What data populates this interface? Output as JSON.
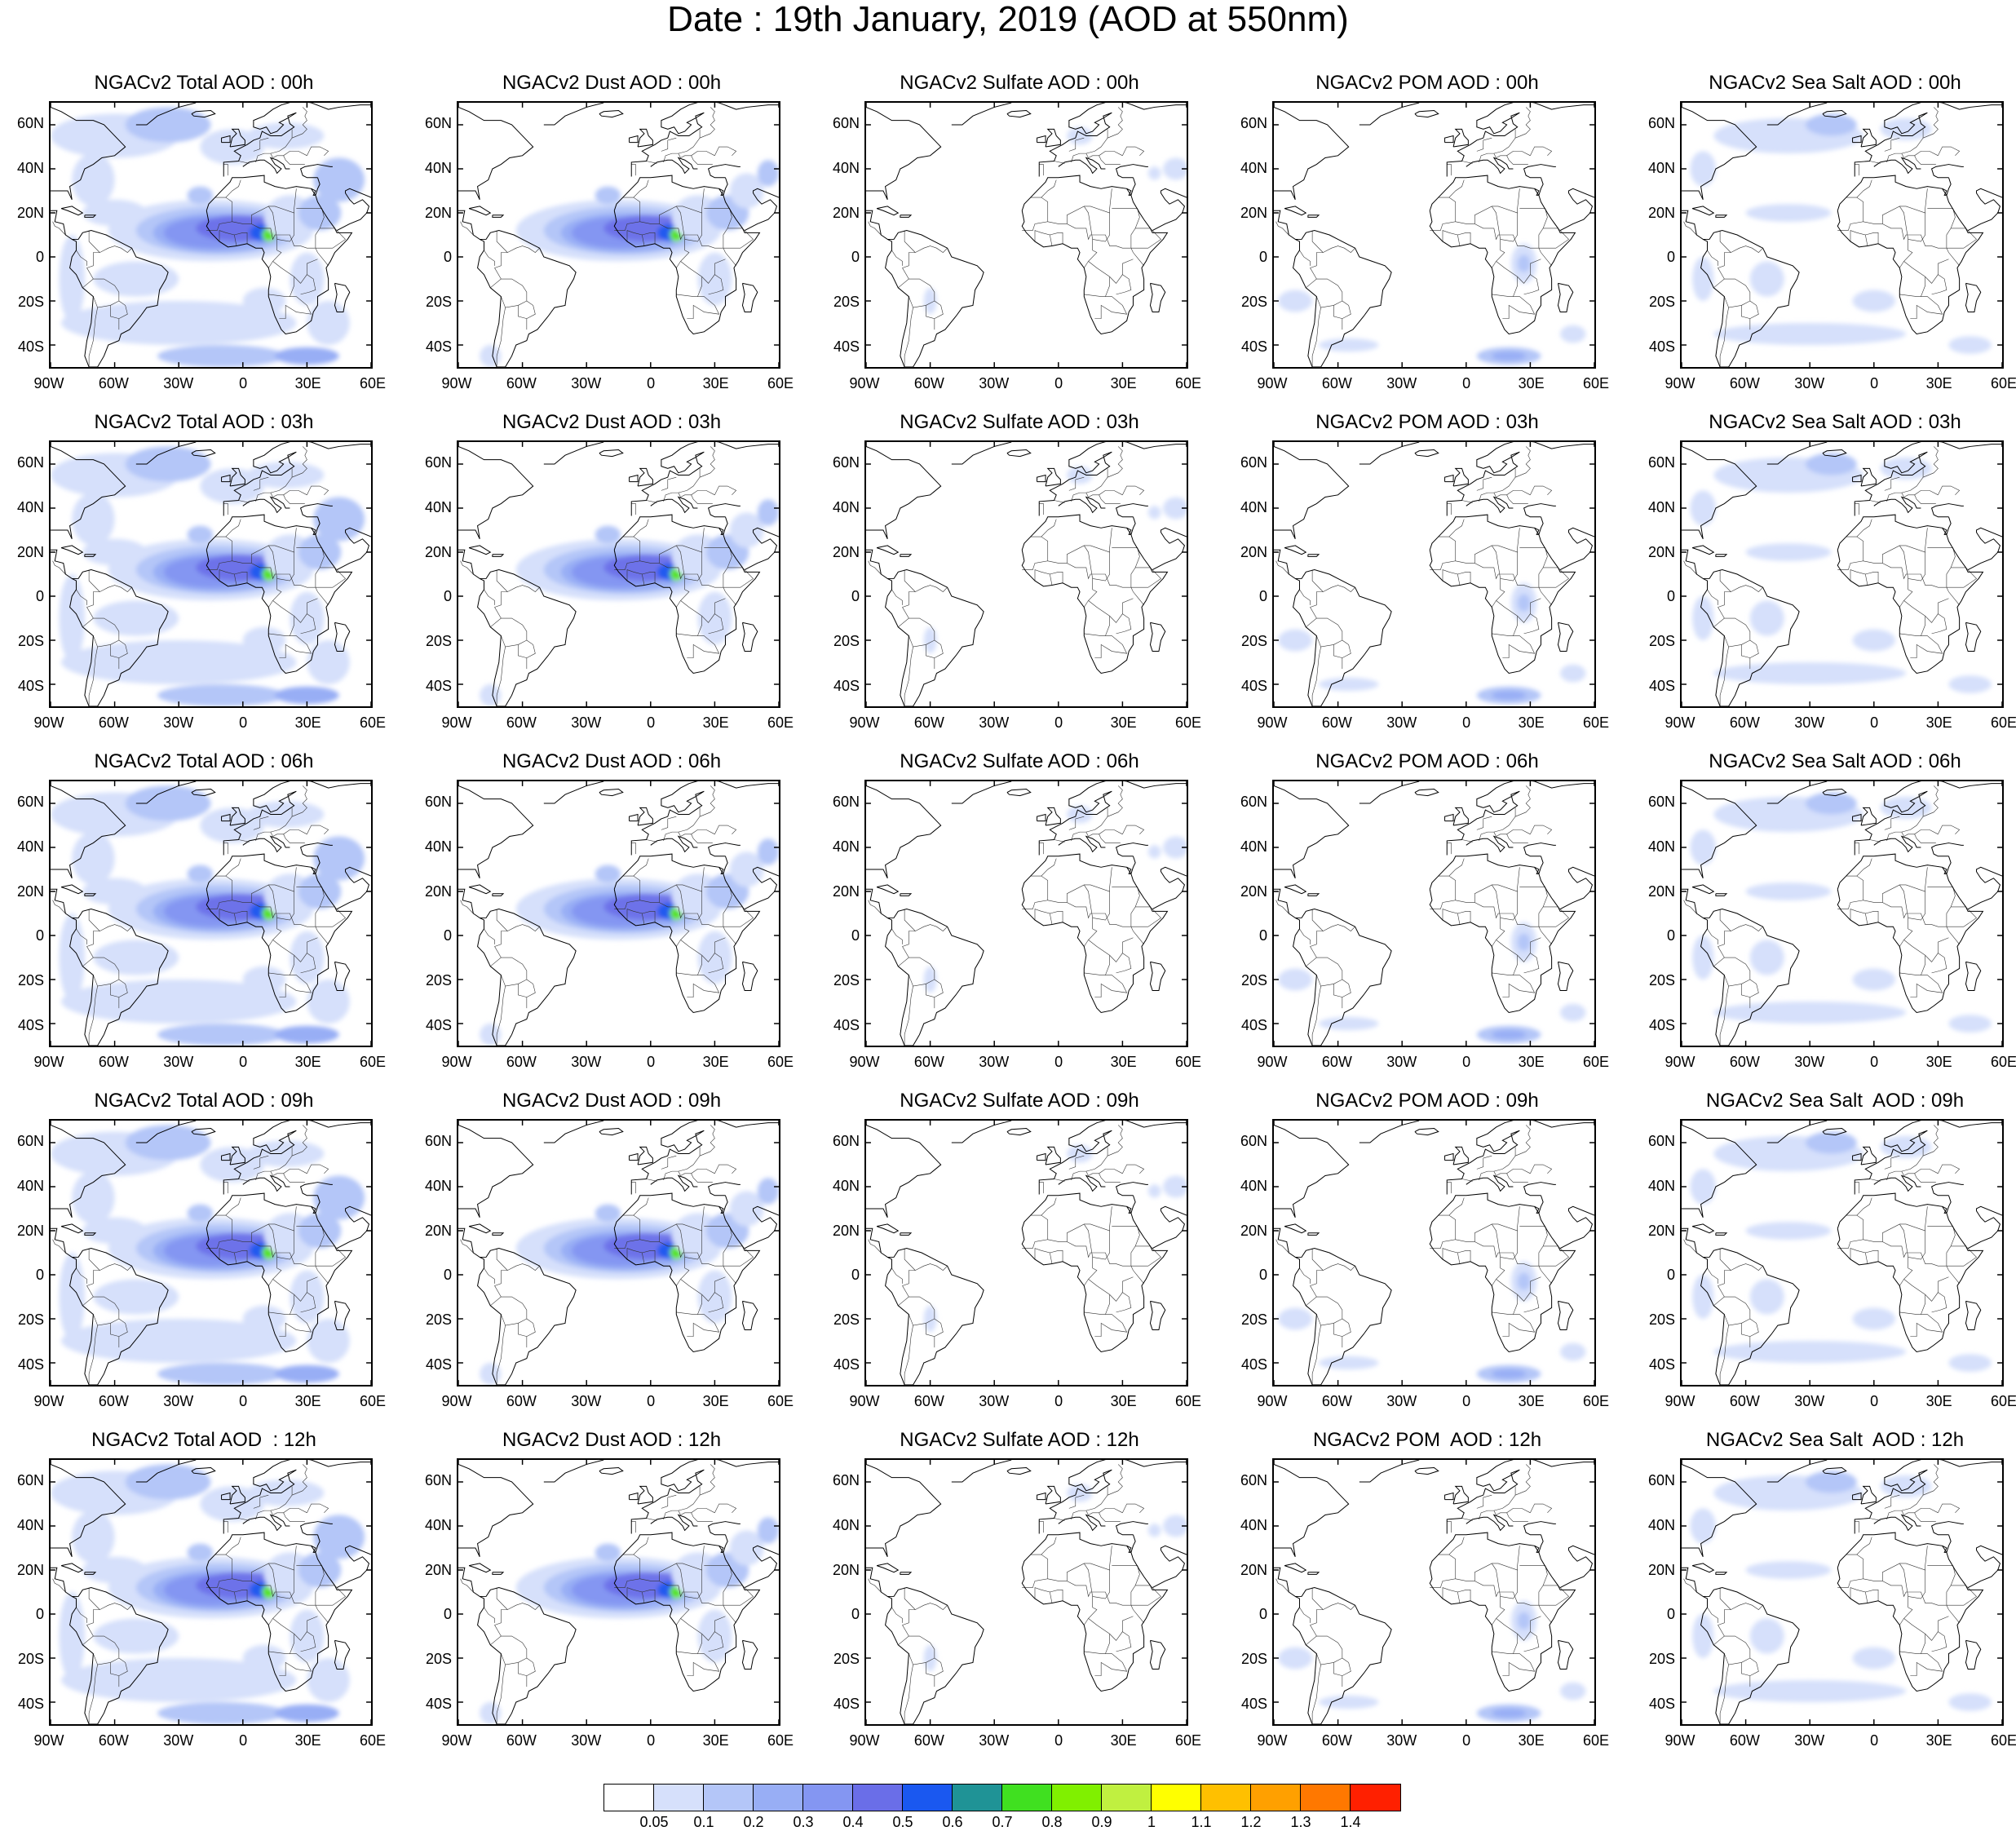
{
  "title": "Date : 19th January, 2019 (AOD at 550nm)",
  "lat_ticks": [
    "60N",
    "40N",
    "20N",
    "0",
    "20S",
    "40S"
  ],
  "lon_ticks": [
    "90W",
    "60W",
    "30W",
    "0",
    "30E",
    "60E"
  ],
  "lat_values": [
    60,
    40,
    20,
    0,
    -20,
    -40
  ],
  "lon_values": [
    -90,
    -60,
    -30,
    0,
    30,
    60
  ],
  "map_extent": {
    "lon": [
      -90,
      60
    ],
    "lat": [
      -50,
      70
    ]
  },
  "panels": [
    {
      "title": "NGACv2 Total AOD : 00h",
      "species": "total",
      "hour": "00h"
    },
    {
      "title": "NGACv2 Dust AOD : 00h",
      "species": "dust",
      "hour": "00h"
    },
    {
      "title": "NGACv2 Sulfate AOD : 00h",
      "species": "sulfate",
      "hour": "00h"
    },
    {
      "title": "NGACv2 POM AOD : 00h",
      "species": "pom",
      "hour": "00h"
    },
    {
      "title": "NGACv2 Sea Salt AOD : 00h",
      "species": "seasalt",
      "hour": "00h"
    },
    {
      "title": "NGACv2 Total AOD : 03h",
      "species": "total",
      "hour": "03h"
    },
    {
      "title": "NGACv2 Dust AOD : 03h",
      "species": "dust",
      "hour": "03h"
    },
    {
      "title": "NGACv2 Sulfate AOD : 03h",
      "species": "sulfate",
      "hour": "03h"
    },
    {
      "title": "NGACv2 POM AOD : 03h",
      "species": "pom",
      "hour": "03h"
    },
    {
      "title": "NGACv2 Sea Salt AOD : 03h",
      "species": "seasalt",
      "hour": "03h"
    },
    {
      "title": "NGACv2 Total AOD : 06h",
      "species": "total",
      "hour": "06h"
    },
    {
      "title": "NGACv2 Dust AOD : 06h",
      "species": "dust",
      "hour": "06h"
    },
    {
      "title": "NGACv2 Sulfate AOD : 06h",
      "species": "sulfate",
      "hour": "06h"
    },
    {
      "title": "NGACv2 POM AOD : 06h",
      "species": "pom",
      "hour": "06h"
    },
    {
      "title": "NGACv2 Sea Salt AOD : 06h",
      "species": "seasalt",
      "hour": "06h"
    },
    {
      "title": "NGACv2 Total AOD : 09h",
      "species": "total",
      "hour": "09h"
    },
    {
      "title": "NGACv2 Dust AOD : 09h",
      "species": "dust",
      "hour": "09h"
    },
    {
      "title": "NGACv2 Sulfate AOD : 09h",
      "species": "sulfate",
      "hour": "09h"
    },
    {
      "title": "NGACv2 POM AOD : 09h",
      "species": "pom",
      "hour": "09h"
    },
    {
      "title": "NGACv2 Sea Salt  AOD : 09h",
      "species": "seasalt",
      "hour": "09h"
    },
    {
      "title": "NGACv2 Total AOD  : 12h",
      "species": "total",
      "hour": "12h"
    },
    {
      "title": "NGACv2 Dust AOD : 12h",
      "species": "dust",
      "hour": "12h"
    },
    {
      "title": "NGACv2 Sulfate AOD : 12h",
      "species": "sulfate",
      "hour": "12h"
    },
    {
      "title": "NGACv2 POM  AOD : 12h",
      "species": "pom",
      "hour": "12h"
    },
    {
      "title": "NGACv2 Sea Salt  AOD : 12h",
      "species": "seasalt",
      "hour": "12h"
    }
  ],
  "colorbar": {
    "labels": [
      "0.05",
      "0.1",
      "0.2",
      "0.3",
      "0.4",
      "0.5",
      "0.6",
      "0.7",
      "0.8",
      "0.9",
      "1",
      "1.1",
      "1.2",
      "1.3",
      "1.4"
    ],
    "colors": [
      "#ffffff",
      "#d6e0fb",
      "#b4c6f8",
      "#98aef5",
      "#8496f2",
      "#6a6ee8",
      "#1a58f0",
      "#1f9396",
      "#40e020",
      "#80f000",
      "#c0f040",
      "#ffff00",
      "#ffc000",
      "#ffa000",
      "#ff7800",
      "#ff2000"
    ]
  }
}
